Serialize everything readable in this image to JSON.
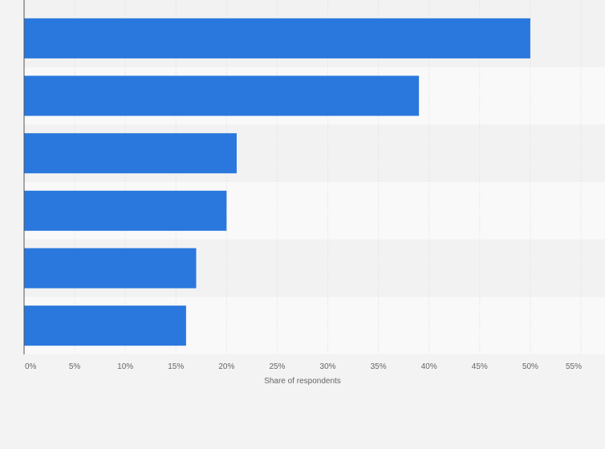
{
  "chart_data": {
    "type": "bar",
    "orientation": "horizontal",
    "categories": [
      "",
      "",
      "",
      "",
      "",
      ""
    ],
    "values": [
      50,
      39,
      21,
      20,
      17,
      16
    ],
    "xlabel": "Share of respondents",
    "ylabel": "",
    "xlim": [
      0,
      55
    ],
    "ticks": [
      0,
      5,
      10,
      15,
      20,
      25,
      30,
      35,
      40,
      45,
      50,
      55
    ],
    "tick_labels": [
      "0%",
      "5%",
      "10%",
      "15%",
      "20%",
      "25%",
      "30%",
      "35%",
      "40%",
      "45%",
      "50%",
      "55%"
    ],
    "grid": true,
    "legend": "none",
    "bar_color": "#2a78dd",
    "band_colors": [
      "#f2f2f2",
      "#f9f9f9"
    ],
    "grid_color": "#dcdcdc",
    "axis_color": "#555555"
  }
}
